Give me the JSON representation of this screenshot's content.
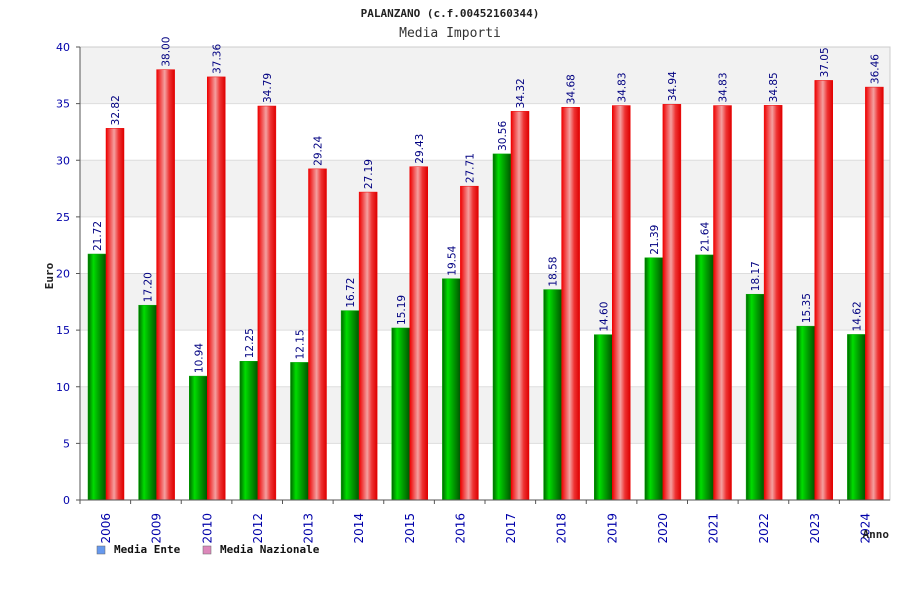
{
  "chart_data": {
    "type": "bar",
    "title": "PALANZANO (c.f.00452160344)",
    "subtitle": "Media Importi",
    "ylabel": "Euro",
    "xlabel": "Anno",
    "ylim": [
      0,
      40
    ],
    "yticks": [
      0,
      5,
      10,
      15,
      20,
      25,
      30,
      35,
      40
    ],
    "grid": true,
    "legend_position": "bottom-left",
    "categories": [
      "2006",
      "2009",
      "2010",
      "2012",
      "2013",
      "2014",
      "2015",
      "2016",
      "2017",
      "2018",
      "2019",
      "2020",
      "2021",
      "2022",
      "2023",
      "2024"
    ],
    "series": [
      {
        "name": "Media Ente",
        "color": "#00aa00",
        "legend_color": "#6699ee",
        "values": [
          21.72,
          17.2,
          10.94,
          12.25,
          12.15,
          16.72,
          15.19,
          19.54,
          30.56,
          18.58,
          14.6,
          21.39,
          21.64,
          18.17,
          15.35,
          14.62
        ],
        "labels": [
          "21.72",
          "17.20",
          "10.94",
          "12.25",
          "12.15",
          "16.72",
          "15.19",
          "19.54",
          "30.56",
          "18.58",
          "14.60",
          "21.39",
          "21.64",
          "18.17",
          "15.35",
          "14.62"
        ]
      },
      {
        "name": "Media Nazionale",
        "color": "#ee0000",
        "legend_color": "#dd88bb",
        "values": [
          32.82,
          38.0,
          37.36,
          34.79,
          29.24,
          27.19,
          29.43,
          27.71,
          34.32,
          34.68,
          34.83,
          34.94,
          34.83,
          34.85,
          37.05,
          36.46
        ],
        "labels": [
          "32.82",
          "38.00",
          "37.36",
          "34.79",
          "29.24",
          "27.19",
          "29.43",
          "27.71",
          "34.32",
          "34.68",
          "34.83",
          "34.94",
          "34.83",
          "34.85",
          "37.05",
          "36.46"
        ]
      }
    ]
  }
}
